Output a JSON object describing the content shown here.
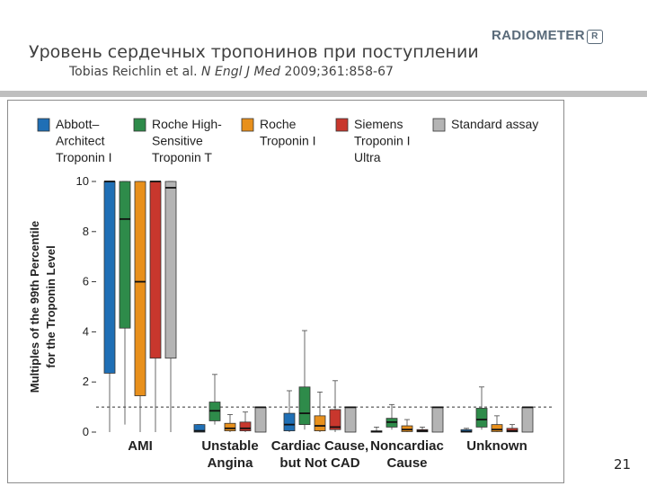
{
  "slide": {
    "title": "Уровень сердечных тропонинов при поступлении",
    "citation_authors": "Tobias Reichlin et al.",
    "citation_journal": "N Engl J Med",
    "citation_ref": "2009;361:858-67",
    "logo_text": "RADIOMETER",
    "logo_mark": "R",
    "page_number": "21"
  },
  "colors": {
    "abbott": "#1f6fb5",
    "roche_hs": "#2e8b4a",
    "roche_tni": "#e8901c",
    "siemens": "#c8372d",
    "standard": "#b4b4b4"
  },
  "chart_data": {
    "type": "boxplot",
    "ylabel_line1": "Multiples of the 99th Percentile",
    "ylabel_line2": "for the Troponin Level",
    "ylim": [
      0,
      10
    ],
    "yticks": [
      "0",
      "2",
      "4",
      "6",
      "8",
      "10"
    ],
    "reference_line": 1,
    "legend": [
      {
        "name": "Abbott–Architect Troponin I",
        "lines": [
          "Abbott–",
          "Architect",
          "Troponin I"
        ],
        "color": "#1f6fb5"
      },
      {
        "name": "Roche High-Sensitive Troponin T",
        "lines": [
          "Roche High-",
          "Sensitive",
          "Troponin T"
        ],
        "color": "#2e8b4a"
      },
      {
        "name": "Roche Troponin I",
        "lines": [
          "Roche",
          "Troponin I"
        ],
        "color": "#e8901c"
      },
      {
        "name": "Siemens Troponin I Ultra",
        "lines": [
          "Siemens",
          "Troponin I",
          "Ultra"
        ],
        "color": "#c8372d"
      },
      {
        "name": "Standard assay",
        "lines": [
          "Standard assay"
        ],
        "color": "#b4b4b4"
      }
    ],
    "groups": [
      {
        "label_lines": [
          "AMI"
        ],
        "boxes": [
          {
            "assay": "Abbott–Architect Troponin I",
            "low": 0,
            "q1": 2.35,
            "median": 10,
            "q3": 10,
            "high": 10
          },
          {
            "assay": "Roche High-Sensitive Troponin T",
            "low": 0.3,
            "q1": 4.15,
            "median": 8.5,
            "q3": 10,
            "high": 10
          },
          {
            "assay": "Roche Troponin I",
            "low": 0,
            "q1": 1.45,
            "median": 6.0,
            "q3": 10,
            "high": 10
          },
          {
            "assay": "Siemens Troponin I Ultra",
            "low": 0,
            "q1": 2.95,
            "median": 10,
            "q3": 10,
            "high": 10
          },
          {
            "assay": "Standard assay",
            "low": 0,
            "q1": 2.95,
            "median": 9.75,
            "q3": 10,
            "high": 10
          }
        ]
      },
      {
        "label_lines": [
          "Unstable",
          "Angina"
        ],
        "boxes": [
          {
            "assay": "Abbott–Architect Troponin I",
            "low": 0,
            "q1": 0,
            "median": 0.05,
            "q3": 0.3,
            "high": 0.3
          },
          {
            "assay": "Roche High-Sensitive Troponin T",
            "low": 0.3,
            "q1": 0.45,
            "median": 0.85,
            "q3": 1.2,
            "high": 2.3
          },
          {
            "assay": "Roche Troponin I",
            "low": 0,
            "q1": 0.05,
            "median": 0.15,
            "q3": 0.35,
            "high": 0.7
          },
          {
            "assay": "Siemens Troponin I Ultra",
            "low": 0,
            "q1": 0.05,
            "median": 0.15,
            "q3": 0.4,
            "high": 0.8
          },
          {
            "assay": "Standard assay",
            "low": 0,
            "q1": 0,
            "median": 0.99,
            "q3": 0.99,
            "high": 0.99
          }
        ]
      },
      {
        "label_lines": [
          "Cardiac Cause,",
          "but Not CAD"
        ],
        "boxes": [
          {
            "assay": "Abbott–Architect Troponin I",
            "low": 0,
            "q1": 0.05,
            "median": 0.3,
            "q3": 0.75,
            "high": 1.65
          },
          {
            "assay": "Roche High-Sensitive Troponin T",
            "low": 0.1,
            "q1": 0.3,
            "median": 0.75,
            "q3": 1.8,
            "high": 4.05
          },
          {
            "assay": "Roche Troponin I",
            "low": 0,
            "q1": 0.05,
            "median": 0.25,
            "q3": 0.65,
            "high": 1.6
          },
          {
            "assay": "Siemens Troponin I Ultra",
            "low": 0,
            "q1": 0.1,
            "median": 0.2,
            "q3": 0.9,
            "high": 2.05
          },
          {
            "assay": "Standard assay",
            "low": 0,
            "q1": 0,
            "median": 0.99,
            "q3": 0.99,
            "high": 0.99
          }
        ]
      },
      {
        "label_lines": [
          "Noncardiac",
          "Cause"
        ],
        "boxes": [
          {
            "assay": "Abbott–Architect Troponin I",
            "low": 0,
            "q1": 0,
            "median": 0.02,
            "q3": 0.05,
            "high": 0.2
          },
          {
            "assay": "Roche High-Sensitive Troponin T",
            "low": 0.1,
            "q1": 0.2,
            "median": 0.4,
            "q3": 0.55,
            "high": 1.1
          },
          {
            "assay": "Roche Troponin I",
            "low": 0,
            "q1": 0.02,
            "median": 0.1,
            "q3": 0.25,
            "high": 0.5
          },
          {
            "assay": "Siemens Troponin I Ultra",
            "low": 0,
            "q1": 0.01,
            "median": 0.05,
            "q3": 0.1,
            "high": 0.2
          },
          {
            "assay": "Standard assay",
            "low": 0,
            "q1": 0,
            "median": 0.99,
            "q3": 0.99,
            "high": 0.99
          }
        ]
      },
      {
        "label_lines": [
          "Unknown"
        ],
        "boxes": [
          {
            "assay": "Abbott–Architect Troponin I",
            "low": 0,
            "q1": 0,
            "median": 0.02,
            "q3": 0.1,
            "high": 0.15
          },
          {
            "assay": "Roche High-Sensitive Troponin T",
            "low": 0.1,
            "q1": 0.2,
            "median": 0.5,
            "q3": 0.95,
            "high": 1.8
          },
          {
            "assay": "Roche Troponin I",
            "low": 0,
            "q1": 0.02,
            "median": 0.1,
            "q3": 0.3,
            "high": 0.65
          },
          {
            "assay": "Siemens Troponin I Ultra",
            "low": 0,
            "q1": 0.01,
            "median": 0.05,
            "q3": 0.15,
            "high": 0.3
          },
          {
            "assay": "Standard assay",
            "low": 0,
            "q1": 0,
            "median": 0.99,
            "q3": 0.99,
            "high": 0.99
          }
        ]
      }
    ]
  }
}
